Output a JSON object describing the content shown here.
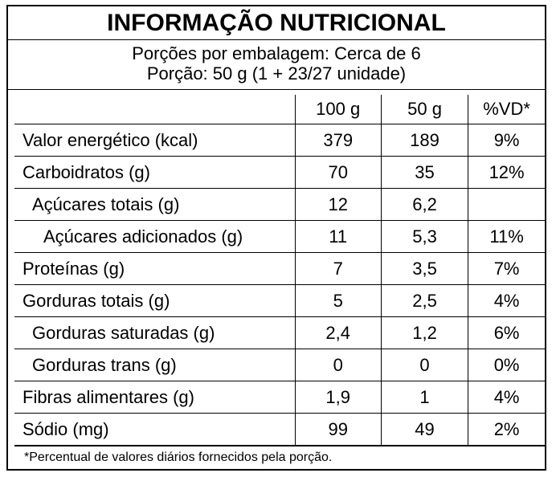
{
  "title": "INFORMAÇÃO NUTRICIONAL",
  "serving": {
    "line1": "Porções por embalagem: Cerca de 6",
    "line2": "Porção: 50 g (1 + 23/27 unidade)"
  },
  "columns": [
    "",
    "100 g",
    "50 g",
    "%VD*"
  ],
  "rows": [
    {
      "name": "Valor energético (kcal)",
      "per100": "379",
      "perPortion": "189",
      "vd": "9%",
      "indent": 0
    },
    {
      "name": "Carboidratos (g)",
      "per100": "70",
      "perPortion": "35",
      "vd": "12%",
      "indent": 0
    },
    {
      "name": "Açúcares totais (g)",
      "per100": "12",
      "perPortion": "6,2",
      "vd": "",
      "indent": 1
    },
    {
      "name": "Açúcares adicionados (g)",
      "per100": "11",
      "perPortion": "5,3",
      "vd": "11%",
      "indent": 2
    },
    {
      "name": "Proteínas (g)",
      "per100": "7",
      "perPortion": "3,5",
      "vd": "7%",
      "indent": 0
    },
    {
      "name": "Gorduras totais (g)",
      "per100": "5",
      "perPortion": "2,5",
      "vd": "4%",
      "indent": 0
    },
    {
      "name": "Gorduras saturadas (g)",
      "per100": "2,4",
      "perPortion": "1,2",
      "vd": "6%",
      "indent": 1
    },
    {
      "name": "Gorduras trans (g)",
      "per100": "0",
      "perPortion": "0",
      "vd": "0%",
      "indent": 1
    },
    {
      "name": "Fibras alimentares (g)",
      "per100": "1,9",
      "perPortion": "1",
      "vd": "4%",
      "indent": 0
    },
    {
      "name": "Sódio (mg)",
      "per100": "99",
      "perPortion": "49",
      "vd": "2%",
      "indent": 0
    }
  ],
  "footnote": "*Percentual de valores diários fornecidos pela porção."
}
